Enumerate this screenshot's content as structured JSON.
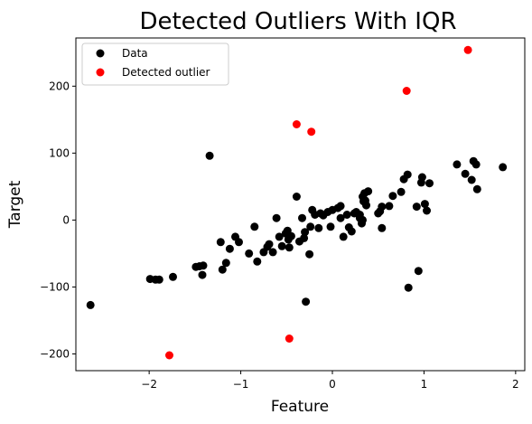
{
  "chart_data": {
    "type": "scatter",
    "title": "Detected Outliers With IQR",
    "xlabel": "Feature",
    "ylabel": "Target",
    "xlim": [
      -2.8,
      2.1
    ],
    "ylim": [
      -225,
      272
    ],
    "xticks": [
      -2,
      -1,
      0,
      1,
      2
    ],
    "yticks": [
      -200,
      -100,
      0,
      100,
      200
    ],
    "grid": false,
    "legend_position": "top-left",
    "series": [
      {
        "name": "Data",
        "color": "#000000",
        "points": [
          [
            -2.64,
            -127
          ],
          [
            -1.99,
            -88
          ],
          [
            -1.93,
            -89
          ],
          [
            -1.89,
            -89
          ],
          [
            -1.74,
            -85
          ],
          [
            -1.49,
            -70
          ],
          [
            -1.45,
            -69
          ],
          [
            -1.41,
            -68
          ],
          [
            -1.42,
            -82
          ],
          [
            -1.34,
            96
          ],
          [
            -1.22,
            -33
          ],
          [
            -1.2,
            -74
          ],
          [
            -1.16,
            -64
          ],
          [
            -1.12,
            -43
          ],
          [
            -1.06,
            -25
          ],
          [
            -1.02,
            -33
          ],
          [
            -0.91,
            -50
          ],
          [
            -0.85,
            -10
          ],
          [
            -0.82,
            -62
          ],
          [
            -0.75,
            -48
          ],
          [
            -0.71,
            -40
          ],
          [
            -0.69,
            -36
          ],
          [
            -0.65,
            -48
          ],
          [
            -0.61,
            3
          ],
          [
            -0.58,
            -25
          ],
          [
            -0.55,
            -39
          ],
          [
            -0.51,
            -20
          ],
          [
            -0.49,
            -16
          ],
          [
            -0.48,
            -29
          ],
          [
            -0.47,
            -41
          ],
          [
            -0.45,
            -24
          ],
          [
            -0.39,
            35
          ],
          [
            -0.36,
            -32
          ],
          [
            -0.33,
            3
          ],
          [
            -0.31,
            -27
          ],
          [
            -0.3,
            -18
          ],
          [
            -0.29,
            -122
          ],
          [
            -0.25,
            -51
          ],
          [
            -0.24,
            -10
          ],
          [
            -0.22,
            15
          ],
          [
            -0.19,
            8
          ],
          [
            -0.15,
            -12
          ],
          [
            -0.13,
            10
          ],
          [
            -0.1,
            7
          ],
          [
            -0.05,
            12
          ],
          [
            -0.02,
            -10
          ],
          [
            0.0,
            15
          ],
          [
            0.06,
            18
          ],
          [
            0.09,
            21
          ],
          [
            0.09,
            3
          ],
          [
            0.12,
            -25
          ],
          [
            0.16,
            8
          ],
          [
            0.18,
            -11
          ],
          [
            0.21,
            -17
          ],
          [
            0.24,
            10
          ],
          [
            0.26,
            12
          ],
          [
            0.3,
            3
          ],
          [
            0.3,
            8
          ],
          [
            0.32,
            -5
          ],
          [
            0.33,
            0
          ],
          [
            0.33,
            35
          ],
          [
            0.34,
            28
          ],
          [
            0.35,
            40
          ],
          [
            0.36,
            29
          ],
          [
            0.37,
            22
          ],
          [
            0.39,
            43
          ],
          [
            0.5,
            10
          ],
          [
            0.52,
            13
          ],
          [
            0.54,
            -12
          ],
          [
            0.54,
            20
          ],
          [
            0.62,
            21
          ],
          [
            0.66,
            36
          ],
          [
            0.75,
            42
          ],
          [
            0.78,
            61
          ],
          [
            0.82,
            68
          ],
          [
            0.83,
            -101
          ],
          [
            0.92,
            20
          ],
          [
            0.94,
            -76
          ],
          [
            0.97,
            56
          ],
          [
            0.98,
            64
          ],
          [
            1.01,
            24
          ],
          [
            1.03,
            14
          ],
          [
            1.06,
            55
          ],
          [
            1.36,
            83
          ],
          [
            1.45,
            69
          ],
          [
            1.52,
            60
          ],
          [
            1.54,
            88
          ],
          [
            1.57,
            83
          ],
          [
            1.58,
            46
          ],
          [
            1.86,
            79
          ]
        ]
      },
      {
        "name": "Detected outlier",
        "color": "#ff0000",
        "points": [
          [
            -1.78,
            -202
          ],
          [
            -0.47,
            -177
          ],
          [
            -0.39,
            143
          ],
          [
            -0.23,
            132
          ],
          [
            0.81,
            193
          ],
          [
            1.48,
            254
          ]
        ]
      }
    ]
  }
}
